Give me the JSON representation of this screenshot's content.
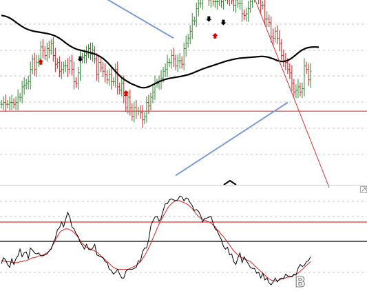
{
  "colors": {
    "background": "#ffffff",
    "grid": "#b4b4b4",
    "bar_up": "#2e8b2e",
    "bar_down": "#c81e1e",
    "moving_average": "#000000",
    "trendline_blue": "#7b9bd1",
    "trendline_red": "#e03030",
    "support_line": "#e03030",
    "oscillator": "#000000",
    "oscillator_signal": "#e03030",
    "level_line_red": "#e03030",
    "level_line_black": "#000000",
    "marker_up": "#e00000",
    "marker_down": "#000000",
    "divider": "#c8c8c8",
    "glyph": "#777777"
  },
  "icons": {
    "collapse_toggle": "collapse-box-icon",
    "chevron": "chevron-up-icon",
    "marker_buy": "up-arrow-marker-icon",
    "marker_sell": "down-arrow-marker-icon"
  },
  "panel": {
    "glyph_label": "B"
  },
  "chart_data": [
    {
      "type": "candlestick",
      "title": "",
      "xlabel": "",
      "ylabel": "",
      "grid": true,
      "ylim": [
        0,
        100
      ],
      "bar_count": 150,
      "price_close": [
        44,
        45,
        44,
        44,
        45,
        45,
        44,
        45,
        48,
        48,
        54,
        55,
        56,
        57,
        64,
        70,
        64,
        68,
        70,
        77,
        75,
        72,
        76,
        75,
        79,
        72,
        67,
        68,
        63,
        64,
        66,
        66,
        64,
        69,
        64,
        57,
        56,
        62,
        70,
        71,
        72,
        73,
        76,
        73,
        75,
        70,
        61,
        68,
        65,
        63,
        61,
        58,
        61,
        57,
        57,
        64,
        54,
        52,
        56,
        49,
        42,
        48,
        42,
        37,
        42,
        40,
        40,
        39,
        35,
        37,
        45,
        43,
        48,
        51,
        56,
        56,
        57,
        59,
        63,
        64,
        68,
        68,
        72,
        70,
        66,
        69,
        69,
        67,
        76,
        79,
        82,
        86,
        92,
        92,
        99,
        102,
        102,
        111,
        112,
        108,
        104,
        107,
        103,
        103,
        103,
        106,
        103,
        110,
        106,
        105,
        105,
        104,
        101,
        104,
        102,
        102,
        96,
        95,
        96,
        99,
        103,
        107,
        111,
        108,
        105,
        101,
        101,
        93,
        93,
        91,
        83,
        82,
        86,
        82,
        79,
        72,
        69,
        68,
        64,
        62,
        56,
        51,
        52,
        54,
        51,
        53,
        66,
        64,
        58,
        63
      ],
      "moving_average": [
        95.1,
        94.9,
        94.6,
        94.2,
        93.6,
        92.9,
        92.1,
        91.2,
        90.3,
        89.5,
        88.7,
        88.0,
        87.4,
        86.9,
        86.5,
        86.2,
        85.9,
        85.7,
        85.5,
        85.3,
        85.1,
        84.9,
        84.7,
        84.4,
        84.1,
        83.7,
        83.2,
        82.6,
        81.9,
        81.1,
        80.2,
        79.3,
        78.4,
        77.6,
        76.9,
        76.3,
        75.8,
        75.4,
        75.1,
        74.8,
        74.5,
        74.2,
        73.9,
        73.6,
        73.3,
        72.9,
        72.4,
        71.8,
        71.1,
        70.3,
        69.3,
        68.2,
        66.9,
        65.6,
        64.2,
        62.9,
        61.6,
        60.4,
        59.3,
        58.4,
        57.6,
        56.9,
        56.2,
        55.6,
        55.1,
        54.6,
        54.1,
        53.7,
        53.5,
        53.5,
        53.7,
        54.1,
        54.6,
        55.2,
        55.8,
        56.4,
        57.0,
        57.5,
        57.9,
        58.3,
        58.6,
        58.9,
        59.1,
        59.3,
        59.5,
        59.7,
        59.9,
        60.1,
        60.4,
        60.7,
        61.0,
        61.4,
        61.8,
        62.3,
        62.8,
        63.3,
        63.8,
        64.3,
        64.7,
        65.1,
        65.5,
        65.9,
        66.3,
        66.7,
        67.1,
        67.5,
        67.9,
        68.3,
        68.7,
        69.0,
        69.3,
        69.6,
        69.9,
        70.1,
        70.3,
        70.5,
        70.6,
        70.7,
        70.8,
        70.9,
        71.0,
        71.1,
        71.2,
        71.3,
        71.4,
        71.5,
        71.5,
        71.4,
        71.2,
        70.9,
        70.5,
        70.1,
        69.6,
        69.1,
        68.8,
        68.6,
        68.6,
        68.8,
        69.2,
        69.8,
        70.6,
        71.5,
        72.5,
        73.5,
        74.4,
        75.2,
        75.8,
        76.3,
        76.6,
        76.8,
        76.9,
        76.9,
        76.9,
        76.8
      ],
      "support_level": 40,
      "trendlines": [
        {
          "color_key": "trendline_blue",
          "points": [
            [
              0,
              140
            ],
            [
              83,
              82
            ]
          ]
        },
        {
          "color_key": "trendline_blue",
          "points": [
            [
              84,
              3
            ],
            [
              138,
              45
            ]
          ]
        },
        {
          "color_key": "trendline_blue",
          "points": [
            [
              139,
              112
            ],
            [
              149,
              109
            ]
          ]
        },
        {
          "color_key": "trendline_red",
          "points": [
            [
              121,
              108
            ],
            [
              158,
              -4
            ]
          ]
        }
      ],
      "markers": [
        {
          "kind": "up",
          "index": 19,
          "value": 68
        },
        {
          "kind": "down",
          "index": 38,
          "value": 70
        },
        {
          "kind": "up",
          "index": 60,
          "value": 50
        },
        {
          "kind": "down",
          "index": 100,
          "value": 93
        },
        {
          "kind": "up",
          "index": 103,
          "value": 83
        },
        {
          "kind": "down",
          "index": 107,
          "value": 91
        }
      ]
    },
    {
      "type": "line",
      "title": "",
      "xlabel": "",
      "ylabel": "",
      "grid": true,
      "ylim": [
        0,
        100
      ],
      "levels": [
        {
          "value": 70,
          "color_key": "level_line_red"
        },
        {
          "value": 50,
          "color_key": "level_line_black"
        }
      ],
      "series": [
        {
          "color_key": "oscillator",
          "values": [
            27,
            33,
            31,
            26,
            23,
            32,
            26,
            32,
            35,
            42,
            34,
            38,
            39,
            32,
            43,
            41,
            38,
            37,
            38,
            35,
            35,
            36,
            37,
            40,
            42,
            48,
            53,
            62,
            64,
            70,
            65,
            73,
            80,
            75,
            65,
            63,
            58,
            55,
            49,
            46,
            42,
            47,
            42,
            41,
            43,
            47,
            36,
            35,
            34,
            33,
            29,
            28,
            21,
            20,
            16,
            18,
            21,
            16,
            12,
            12,
            19,
            21,
            21,
            21,
            22,
            23,
            30,
            29,
            39,
            43,
            43,
            52,
            66,
            71,
            75,
            76,
            71,
            74,
            82,
            89,
            89,
            93,
            94,
            93,
            92,
            93,
            97,
            96,
            92,
            95,
            94,
            90,
            87,
            82,
            83,
            81,
            77,
            70,
            74,
            74,
            75,
            76,
            69,
            63,
            61,
            56,
            52,
            45,
            42,
            44,
            36,
            37,
            29,
            26,
            33,
            38,
            28,
            34,
            30,
            27,
            23,
            22,
            22,
            17,
            18,
            12,
            17,
            10,
            12,
            7,
            5,
            8,
            12,
            8,
            11,
            12,
            11,
            16,
            14,
            14,
            13,
            16,
            15,
            22,
            26,
            24,
            25,
            29,
            30,
            34
          ]
        },
        {
          "color_key": "oscillator_signal",
          "values": [
            30,
            30,
            29,
            29,
            29,
            28,
            28,
            28,
            28,
            29,
            29,
            30,
            30,
            31,
            32,
            33,
            33,
            34,
            35,
            35,
            36,
            37,
            38,
            40,
            43,
            47,
            51,
            55,
            59,
            61,
            62,
            63,
            63,
            62,
            61,
            59,
            57,
            54,
            51,
            48,
            46,
            44,
            43,
            42,
            41,
            40,
            39,
            37,
            35,
            33,
            31,
            29,
            27,
            25,
            23,
            22,
            21,
            21,
            21,
            21,
            21,
            21,
            22,
            23,
            24,
            25,
            27,
            29,
            32,
            35,
            39,
            43,
            48,
            53,
            58,
            63,
            68,
            72,
            76,
            80,
            84,
            87,
            89,
            91,
            92,
            92,
            92,
            91,
            90,
            89,
            88,
            86,
            84,
            81,
            78,
            76,
            74,
            73,
            72,
            71,
            70,
            69,
            67,
            65,
            62,
            60,
            57,
            55,
            52,
            49,
            46,
            43,
            40,
            38,
            36,
            34,
            33,
            32,
            31,
            30,
            29,
            27,
            25,
            23,
            21,
            19,
            17,
            15,
            13,
            11,
            10,
            9,
            9,
            9,
            10,
            11,
            12,
            12,
            13,
            13,
            14,
            15,
            16,
            17,
            19,
            21,
            23,
            25,
            27,
            29
          ]
        }
      ]
    }
  ]
}
